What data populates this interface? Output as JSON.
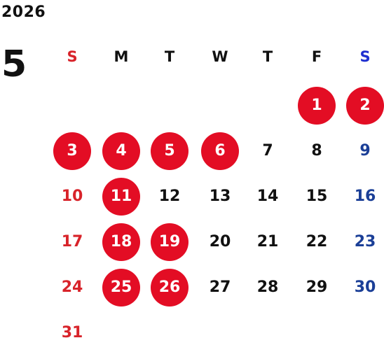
{
  "calendar": {
    "year": "2026",
    "month": "5",
    "weekdays": [
      "S",
      "M",
      "T",
      "W",
      "T",
      "F",
      "S"
    ],
    "first_weekday": 5,
    "days_in_month": 31,
    "highlighted_days": [
      1,
      2,
      3,
      4,
      5,
      6,
      11,
      18,
      19,
      25,
      26
    ],
    "colors": {
      "default_text": "#111111",
      "sunday": "#d8232a",
      "saturday": "#1b3f97",
      "saturday_header": "#1f2fd0",
      "holiday_fill": "#e30d24",
      "holiday_text": "#ffffff"
    }
  }
}
